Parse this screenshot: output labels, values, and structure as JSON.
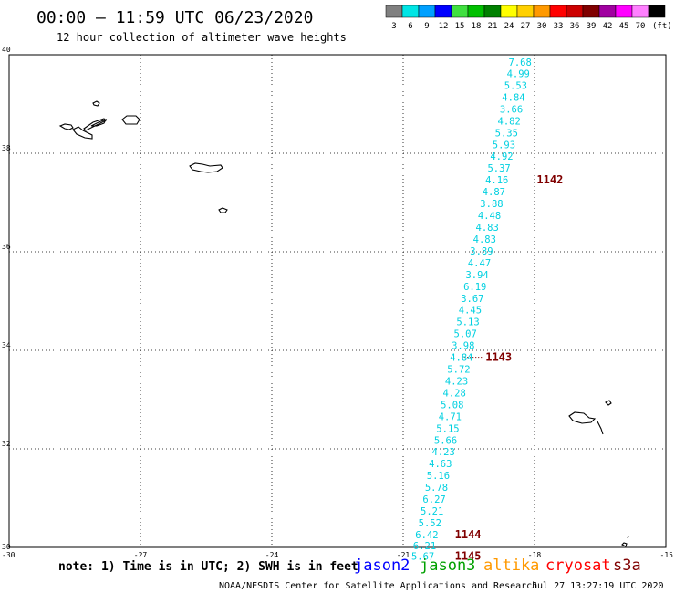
{
  "header": {
    "title": "00:00 – 11:59 UTC 06/23/2020",
    "subtitle": "12 hour collection of altimeter wave heights"
  },
  "legend": {
    "swatches": [
      {
        "color": "#808080",
        "label": "3"
      },
      {
        "color": "#00e5e5",
        "label": "6"
      },
      {
        "color": "#00a0ff",
        "label": "9"
      },
      {
        "color": "#0000ff",
        "label": "12"
      },
      {
        "color": "#40e040",
        "label": "15"
      },
      {
        "color": "#00c000",
        "label": "18"
      },
      {
        "color": "#008000",
        "label": "21"
      },
      {
        "color": "#ffff00",
        "label": "24"
      },
      {
        "color": "#ffd000",
        "label": "27"
      },
      {
        "color": "#ff9900",
        "label": "30"
      },
      {
        "color": "#ff0000",
        "label": "33"
      },
      {
        "color": "#cc0000",
        "label": "36"
      },
      {
        "color": "#800000",
        "label": "39"
      },
      {
        "color": "#a000a0",
        "label": "42"
      },
      {
        "color": "#ff00ff",
        "label": "45"
      },
      {
        "color": "#ff80ff",
        "label": "70"
      },
      {
        "color": "#000000",
        "label": "(ft)"
      }
    ]
  },
  "map": {
    "lat_ticks": [
      "40",
      "38",
      "36",
      "34",
      "32",
      "30"
    ],
    "lon_ticks": [
      "-30",
      "-27",
      "-24",
      "-21",
      "-18",
      "-15"
    ],
    "swh_color": "#00d0e0",
    "pass_color": "#800000",
    "swh_points": [
      {
        "lat": 39.85,
        "lon": -18.33,
        "value": "7.68"
      },
      {
        "lat": 39.62,
        "lon": -18.37,
        "value": "4.99"
      },
      {
        "lat": 39.38,
        "lon": -18.43,
        "value": "5.53"
      },
      {
        "lat": 39.14,
        "lon": -18.48,
        "value": "4.84"
      },
      {
        "lat": 38.9,
        "lon": -18.53,
        "value": "3.66"
      },
      {
        "lat": 38.66,
        "lon": -18.58,
        "value": "4.82"
      },
      {
        "lat": 38.42,
        "lon": -18.64,
        "value": "5.35"
      },
      {
        "lat": 38.18,
        "lon": -18.7,
        "value": "5.93"
      },
      {
        "lat": 37.94,
        "lon": -18.75,
        "value": "4.92"
      },
      {
        "lat": 37.7,
        "lon": -18.81,
        "value": "5.37"
      },
      {
        "lat": 37.46,
        "lon": -18.86,
        "value": "4.16"
      },
      {
        "lat": 37.22,
        "lon": -18.93,
        "value": "4.87"
      },
      {
        "lat": 36.98,
        "lon": -18.98,
        "value": "3.88"
      },
      {
        "lat": 36.74,
        "lon": -19.03,
        "value": "4.48"
      },
      {
        "lat": 36.5,
        "lon": -19.08,
        "value": "4.83"
      },
      {
        "lat": 36.26,
        "lon": -19.14,
        "value": "4.83"
      },
      {
        "lat": 36.02,
        "lon": -19.21,
        "value": "3.89"
      },
      {
        "lat": 35.78,
        "lon": -19.26,
        "value": "4.47"
      },
      {
        "lat": 35.54,
        "lon": -19.31,
        "value": "3.94"
      },
      {
        "lat": 35.3,
        "lon": -19.36,
        "value": "6.19"
      },
      {
        "lat": 35.06,
        "lon": -19.42,
        "value": "3.67"
      },
      {
        "lat": 34.82,
        "lon": -19.47,
        "value": "4.45"
      },
      {
        "lat": 34.58,
        "lon": -19.52,
        "value": "5.13"
      },
      {
        "lat": 34.34,
        "lon": -19.58,
        "value": "5.07"
      },
      {
        "lat": 34.1,
        "lon": -19.63,
        "value": "3.98"
      },
      {
        "lat": 33.86,
        "lon": -19.67,
        "value": "4.84"
      },
      {
        "lat": 33.62,
        "lon": -19.73,
        "value": "5.72"
      },
      {
        "lat": 33.38,
        "lon": -19.78,
        "value": "4.23"
      },
      {
        "lat": 33.14,
        "lon": -19.83,
        "value": "4.28"
      },
      {
        "lat": 32.9,
        "lon": -19.88,
        "value": "5.08"
      },
      {
        "lat": 32.66,
        "lon": -19.93,
        "value": "4.71"
      },
      {
        "lat": 32.42,
        "lon": -19.98,
        "value": "5.15"
      },
      {
        "lat": 32.18,
        "lon": -20.03,
        "value": "5.66"
      },
      {
        "lat": 31.94,
        "lon": -20.08,
        "value": "4.23"
      },
      {
        "lat": 31.7,
        "lon": -20.15,
        "value": "4.63"
      },
      {
        "lat": 31.46,
        "lon": -20.2,
        "value": "5.16"
      },
      {
        "lat": 31.22,
        "lon": -20.24,
        "value": "5.78"
      },
      {
        "lat": 30.98,
        "lon": -20.29,
        "value": "6.27"
      },
      {
        "lat": 30.74,
        "lon": -20.34,
        "value": "5.21"
      },
      {
        "lat": 30.5,
        "lon": -20.39,
        "value": "5.52"
      },
      {
        "lat": 30.26,
        "lon": -20.46,
        "value": "6.42"
      },
      {
        "lat": 30.04,
        "lon": -20.51,
        "value": "6.21"
      },
      {
        "lat": 29.82,
        "lon": -20.55,
        "value": "5.67"
      }
    ],
    "pass_labels": [
      {
        "lat": 37.46,
        "lon": -17.95,
        "value": "1142",
        "dots": false
      },
      {
        "lat": 33.86,
        "lon": -19.12,
        "value": "1143",
        "dots": true
      },
      {
        "lat": 30.26,
        "lon": -19.82,
        "value": "1144",
        "dots": false
      },
      {
        "lat": 29.82,
        "lon": -19.82,
        "value": "1145",
        "dots": false
      }
    ]
  },
  "footer": {
    "note": "note: 1) Time is in UTC; 2) SWH is in feet",
    "satellites": [
      {
        "name": "jason2",
        "color": "#0000ff"
      },
      {
        "name": "jason3",
        "color": "#00a000"
      },
      {
        "name": "altika",
        "color": "#ff9900"
      },
      {
        "name": "cryosat",
        "color": "#ff0000"
      },
      {
        "name": "s3a",
        "color": "#800000"
      }
    ],
    "credit": "NOAA/NESDIS Center for Satellite Applications and Research",
    "timestamp": "Jul 27 13:27:19 UTC 2020"
  }
}
